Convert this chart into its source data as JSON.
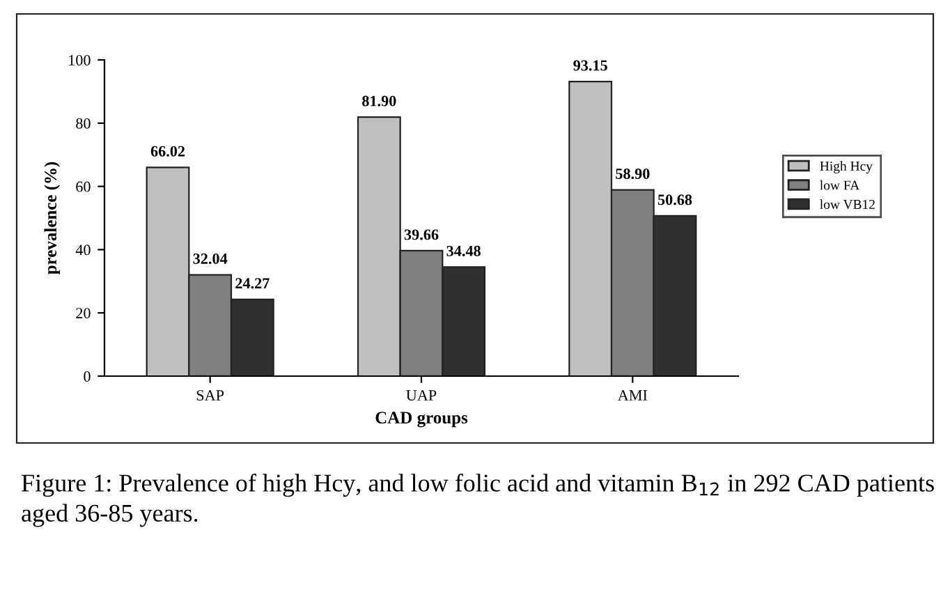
{
  "chart_data": {
    "type": "bar",
    "xlabel": "CAD groups",
    "ylabel": "prevalence (%)",
    "categories": [
      "SAP",
      "UAP",
      "AMI"
    ],
    "series": [
      {
        "name": "High Hcy",
        "color": "#c0c0c0",
        "values": [
          66.02,
          81.9,
          93.15
        ],
        "value_labels": [
          "66.02",
          "81.90",
          "93.15"
        ]
      },
      {
        "name": "low FA",
        "color": "#808080",
        "values": [
          32.04,
          39.66,
          58.9
        ],
        "value_labels": [
          "32.04",
          "39.66",
          "58.90"
        ]
      },
      {
        "name": "low VB12",
        "color": "#303030",
        "values": [
          24.27,
          34.48,
          50.68
        ],
        "value_labels": [
          "24.27",
          "34.48",
          "50.68"
        ]
      }
    ],
    "ylim": [
      0,
      100
    ],
    "yticks": [
      0,
      20,
      40,
      60,
      80,
      100
    ],
    "grid": false,
    "legend": "right",
    "annotations": [
      "Figure 1: Prevalence of high Hcy, and low folic acid and vitamin B$_{12}$ in 292 CAD patients aged 36-85 years."
    ]
  }
}
